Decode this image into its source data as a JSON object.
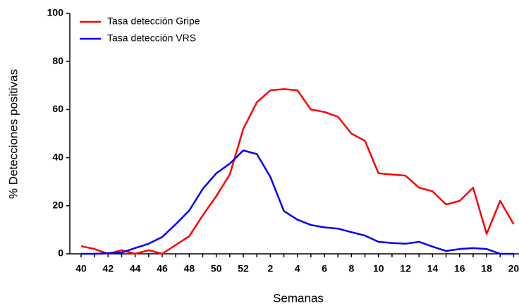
{
  "chart_data": {
    "type": "line",
    "x_label": "Semanas",
    "y_label": "% Detecciones positivas",
    "categories": [
      40,
      null,
      42,
      null,
      44,
      null,
      46,
      null,
      48,
      null,
      50,
      null,
      52,
      null,
      2,
      null,
      4,
      null,
      6,
      null,
      8,
      null,
      10,
      null,
      12,
      null,
      14,
      null,
      16,
      null,
      18,
      null,
      20
    ],
    "series": [
      {
        "name": "Tasa detección Gripe",
        "color": "#ff0000",
        "values": [
          3.2,
          2,
          0,
          1.5,
          0,
          1.5,
          0,
          3.7,
          7.3,
          16,
          24,
          33,
          52,
          63,
          68,
          68.5,
          68,
          60,
          59,
          57,
          50,
          47,
          33.5,
          33,
          32.5,
          27.5,
          26,
          20.5,
          22,
          27.5,
          8.3,
          22,
          12.3
        ]
      },
      {
        "name": "Tasa detección VRS",
        "color": "#0000ff",
        "values": [
          0,
          0,
          0.3,
          0.5,
          2.4,
          4.2,
          7,
          12.3,
          18,
          27,
          33.5,
          37.5,
          43,
          41.5,
          32,
          17.8,
          14.2,
          12,
          11,
          10.5,
          9,
          7.6,
          5,
          4.5,
          4.2,
          5,
          3,
          1.2,
          2,
          2.4,
          2,
          0,
          0
        ]
      }
    ],
    "ylim": [
      0,
      100
    ],
    "yticks": [
      0,
      20,
      40,
      60,
      80,
      100
    ],
    "legend": "upper left"
  }
}
